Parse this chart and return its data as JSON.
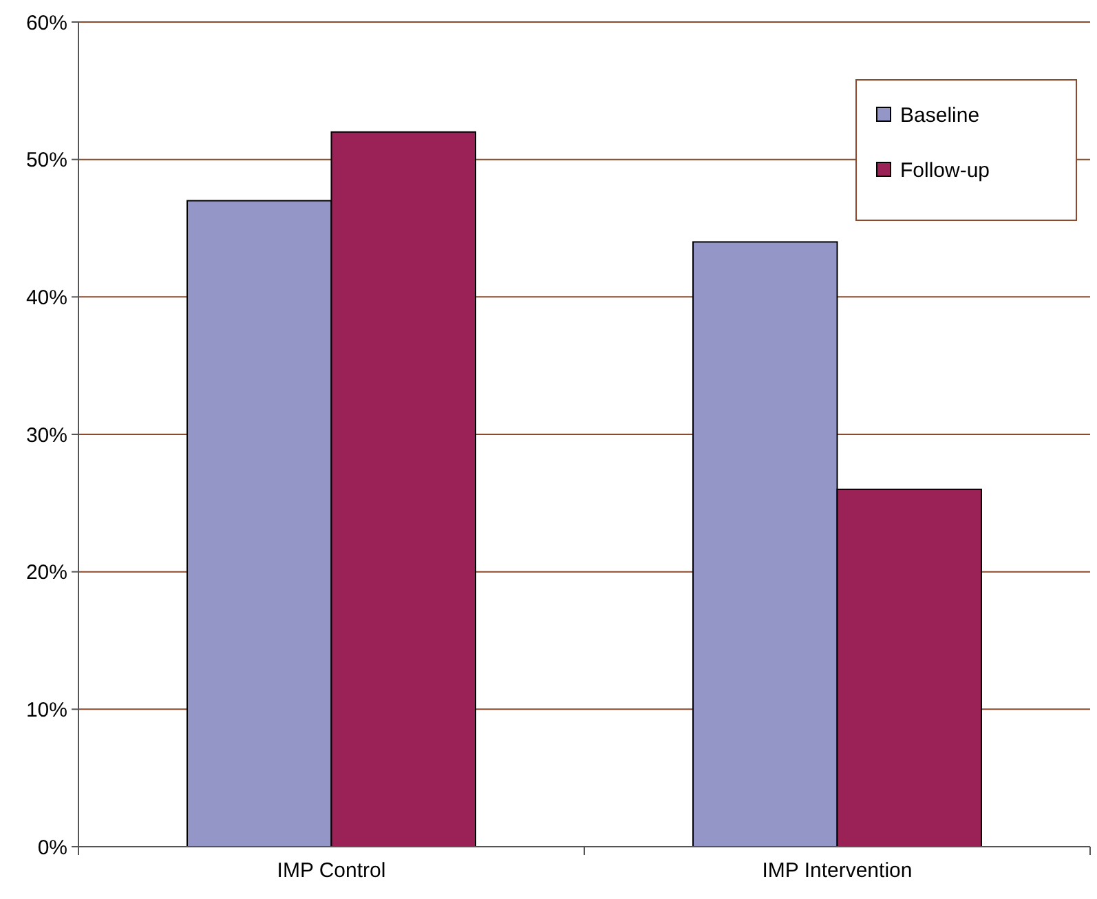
{
  "chart_data": {
    "type": "bar",
    "categories": [
      "IMP Control",
      "IMP Intervention"
    ],
    "series": [
      {
        "name": "Baseline",
        "color": "#9596c8",
        "values": [
          47,
          44
        ]
      },
      {
        "name": "Follow-up",
        "color": "#9b2257",
        "values": [
          52,
          26
        ]
      }
    ],
    "ylim": [
      0,
      60
    ],
    "yticks": [
      {
        "value": 0,
        "label": "0%"
      },
      {
        "value": 10,
        "label": "10%"
      },
      {
        "value": 20,
        "label": "20%"
      },
      {
        "value": 30,
        "label": "30%"
      },
      {
        "value": 40,
        "label": "40%"
      },
      {
        "value": 50,
        "label": "50%"
      },
      {
        "value": 60,
        "label": "60%"
      }
    ],
    "grid": "y",
    "legend": "top right"
  }
}
